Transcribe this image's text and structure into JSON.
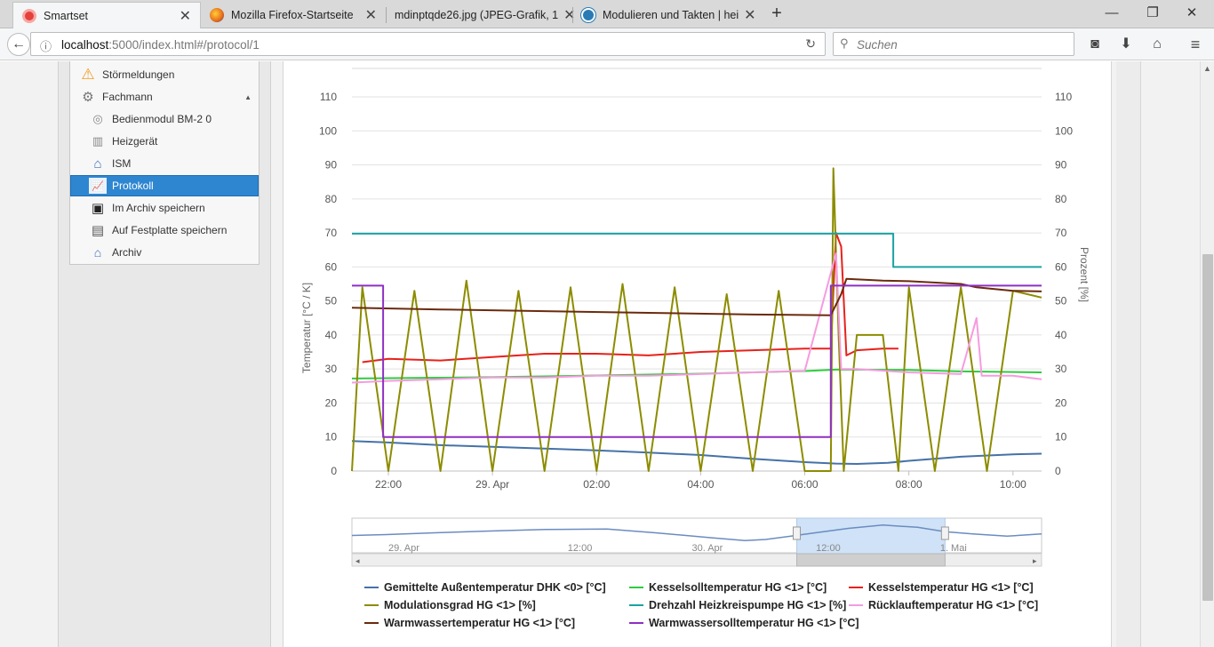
{
  "browser": {
    "tabs": [
      {
        "label": "Smartset",
        "icon": "smartset-icon",
        "active": true
      },
      {
        "label": "Mozilla Firefox-Startseite",
        "icon": "firefox-icon",
        "active": false
      },
      {
        "label": "mdinptqde26.jpg (JPEG-Grafik, 1",
        "icon": "image-icon",
        "active": false
      },
      {
        "label": "Modulieren und Takten | hei",
        "icon": "wordpress-icon",
        "active": false
      }
    ],
    "url_host": "localhost",
    "url_rest": ":5000/index.html#/protocol/1",
    "search_placeholder": "Suchen"
  },
  "sidebar": {
    "items": [
      {
        "label": "Störmeldungen",
        "icon": "warning-icon",
        "level": 0
      },
      {
        "label": "Fachmann",
        "icon": "gears-icon",
        "level": 0,
        "expanded": true
      },
      {
        "label": "Bedienmodul BM-2 0",
        "icon": "control-module-icon",
        "level": 1
      },
      {
        "label": "Heizgerät",
        "icon": "heater-icon",
        "level": 1
      },
      {
        "label": "ISM",
        "icon": "house-icon",
        "level": 1
      },
      {
        "label": "Protokoll",
        "icon": "chart-icon",
        "level": 1,
        "active": true
      },
      {
        "label": "Im Archiv speichern",
        "icon": "floppy-icon",
        "level": 1
      },
      {
        "label": "Auf Festplatte speichern",
        "icon": "save-disk-icon",
        "level": 1
      },
      {
        "label": "Archiv",
        "icon": "archive-icon",
        "level": 1
      }
    ]
  },
  "chart_data": {
    "type": "line",
    "ylabel": "Temperatur [°C / K]",
    "y2label": "Prozent [%]",
    "ylim": [
      0,
      110
    ],
    "yticks": [
      0,
      10,
      20,
      30,
      40,
      50,
      60,
      70,
      80,
      90,
      100,
      110
    ],
    "xlim": [
      21.3,
      34.55
    ],
    "xticks": [
      {
        "x": 22,
        "label": "22:00"
      },
      {
        "x": 24,
        "label": "29. Apr"
      },
      {
        "x": 26,
        "label": "02:00"
      },
      {
        "x": 28,
        "label": "04:00"
      },
      {
        "x": 30,
        "label": "06:00"
      },
      {
        "x": 32,
        "label": "08:00"
      },
      {
        "x": 34,
        "label": "10:00"
      }
    ],
    "grid": true,
    "legend_position": "bottom",
    "series": [
      {
        "name": "Gemittelte Außentemperatur DHK <0> [°C]",
        "color": "#4572a7",
        "points": [
          [
            21.3,
            8.8
          ],
          [
            22,
            8.4
          ],
          [
            23,
            7.6
          ],
          [
            24,
            7.1
          ],
          [
            25,
            6.6
          ],
          [
            26,
            6.1
          ],
          [
            27,
            5.4
          ],
          [
            28,
            4.7
          ],
          [
            29,
            3.6
          ],
          [
            30,
            2.6
          ],
          [
            30.6,
            2.2
          ],
          [
            31,
            2.1
          ],
          [
            31.6,
            2.4
          ],
          [
            32,
            3.0
          ],
          [
            33,
            4.2
          ],
          [
            34,
            4.9
          ],
          [
            34.55,
            5.1
          ]
        ]
      },
      {
        "name": "Kesselsolltemperatur HG <1> [°C]",
        "color": "#2ecc40",
        "points": [
          [
            21.3,
            27.2
          ],
          [
            24,
            27.6
          ],
          [
            26,
            28.1
          ],
          [
            28,
            28.6
          ],
          [
            30,
            29.4
          ],
          [
            30.6,
            29.8
          ],
          [
            31,
            29.8
          ],
          [
            32,
            29.7
          ],
          [
            33,
            29.3
          ],
          [
            34.55,
            29.0
          ]
        ]
      },
      {
        "name": "Kesselstemperatur HG <1> [°C]",
        "color": "#e8211b",
        "points": [
          [
            21.5,
            32
          ],
          [
            22,
            33
          ],
          [
            23,
            32.5
          ],
          [
            24,
            33.5
          ],
          [
            25,
            34.5
          ],
          [
            26,
            34.5
          ],
          [
            27,
            34
          ],
          [
            28,
            35
          ],
          [
            29,
            35.5
          ],
          [
            30,
            36
          ],
          [
            30.5,
            36
          ],
          [
            30.6,
            70
          ],
          [
            30.7,
            66
          ],
          [
            30.8,
            34
          ],
          [
            31,
            35.5
          ],
          [
            31.5,
            36
          ],
          [
            31.8,
            36
          ]
        ]
      },
      {
        "name": "Modulationsgrad HG <1> [%]",
        "color": "#8c8c00",
        "points": [
          [
            21.3,
            0
          ],
          [
            21.5,
            54
          ],
          [
            22,
            0
          ],
          [
            22.5,
            53
          ],
          [
            23,
            0
          ],
          [
            23.5,
            56
          ],
          [
            24,
            0
          ],
          [
            24.5,
            53
          ],
          [
            25,
            0
          ],
          [
            25.5,
            54
          ],
          [
            26,
            0
          ],
          [
            26.5,
            55
          ],
          [
            27,
            0
          ],
          [
            27.5,
            54
          ],
          [
            28,
            0
          ],
          [
            28.5,
            52
          ],
          [
            29,
            0
          ],
          [
            29.5,
            53
          ],
          [
            30,
            0
          ],
          [
            30.5,
            0
          ],
          [
            30.55,
            89
          ],
          [
            30.65,
            40
          ],
          [
            30.75,
            0
          ],
          [
            31,
            40
          ],
          [
            31.5,
            40
          ],
          [
            31.8,
            0
          ],
          [
            32,
            54
          ],
          [
            32.5,
            0
          ],
          [
            33,
            54
          ],
          [
            33.5,
            0
          ],
          [
            34,
            53
          ],
          [
            34.55,
            51
          ]
        ]
      },
      {
        "name": "Drehzahl Heizkreispumpe HG <1> [%]",
        "color": "#1aa3a3",
        "points": [
          [
            21.3,
            69.8
          ],
          [
            30.6,
            69.8
          ],
          [
            30.7,
            69.8
          ],
          [
            31.7,
            69.8
          ],
          [
            31.7,
            60
          ],
          [
            34.55,
            60
          ]
        ]
      },
      {
        "name": "Rücklauftemperatur HG <1> [°C]",
        "color": "#f69be0",
        "points": [
          [
            21.3,
            26
          ],
          [
            22,
            26.5
          ],
          [
            23,
            27
          ],
          [
            24,
            27.5
          ],
          [
            25,
            27.5
          ],
          [
            26,
            28
          ],
          [
            27,
            28
          ],
          [
            28,
            28.5
          ],
          [
            29,
            29
          ],
          [
            30,
            29.5
          ],
          [
            30.6,
            64
          ],
          [
            30.7,
            30
          ],
          [
            31,
            30
          ],
          [
            32,
            29
          ],
          [
            33,
            28.5
          ],
          [
            33.3,
            45
          ],
          [
            33.4,
            28
          ],
          [
            34,
            28
          ],
          [
            34.55,
            27
          ]
        ]
      },
      {
        "name": "Warmwassertemperatur HG <1> [°C]",
        "color": "#6b2a0d",
        "points": [
          [
            21.3,
            48
          ],
          [
            23,
            47.5
          ],
          [
            25,
            47
          ],
          [
            27,
            46.5
          ],
          [
            29,
            46
          ],
          [
            30.5,
            45.8
          ],
          [
            30.7,
            52
          ],
          [
            30.8,
            56.5
          ],
          [
            31.5,
            56
          ],
          [
            32,
            55.8
          ],
          [
            33,
            55
          ],
          [
            33.3,
            54
          ],
          [
            34,
            53
          ],
          [
            34.55,
            52.8
          ]
        ]
      },
      {
        "name": "Warmwassersolltemperatur HG <1> [°C]",
        "color": "#8e2fc4",
        "points": [
          [
            21.3,
            54.5
          ],
          [
            21.9,
            54.5
          ],
          [
            21.9,
            10
          ],
          [
            30.5,
            10
          ],
          [
            30.5,
            54.5
          ],
          [
            34.55,
            54.5
          ]
        ]
      }
    ],
    "navigator": {
      "labels": [
        {
          "x": 0.04,
          "text": "29. Apr"
        },
        {
          "x": 0.3,
          "text": "12:00"
        },
        {
          "x": 0.48,
          "text": "30. Apr"
        },
        {
          "x": 0.66,
          "text": "12:00"
        },
        {
          "x": 0.84,
          "text": "1. Mai"
        }
      ],
      "selection": [
        0.645,
        0.86
      ],
      "points": [
        [
          0,
          0.62
        ],
        [
          0.05,
          0.58
        ],
        [
          0.12,
          0.5
        ],
        [
          0.2,
          0.42
        ],
        [
          0.28,
          0.35
        ],
        [
          0.37,
          0.33
        ],
        [
          0.44,
          0.5
        ],
        [
          0.52,
          0.72
        ],
        [
          0.57,
          0.85
        ],
        [
          0.6,
          0.8
        ],
        [
          0.66,
          0.55
        ],
        [
          0.72,
          0.3
        ],
        [
          0.77,
          0.15
        ],
        [
          0.82,
          0.25
        ],
        [
          0.86,
          0.45
        ],
        [
          0.9,
          0.55
        ],
        [
          0.95,
          0.65
        ],
        [
          1,
          0.55
        ]
      ]
    }
  },
  "colors": {
    "active_menu": "#2f86d0",
    "navigator_line": "#6b8cc0",
    "navigator_selection": "#cfe2f7"
  }
}
